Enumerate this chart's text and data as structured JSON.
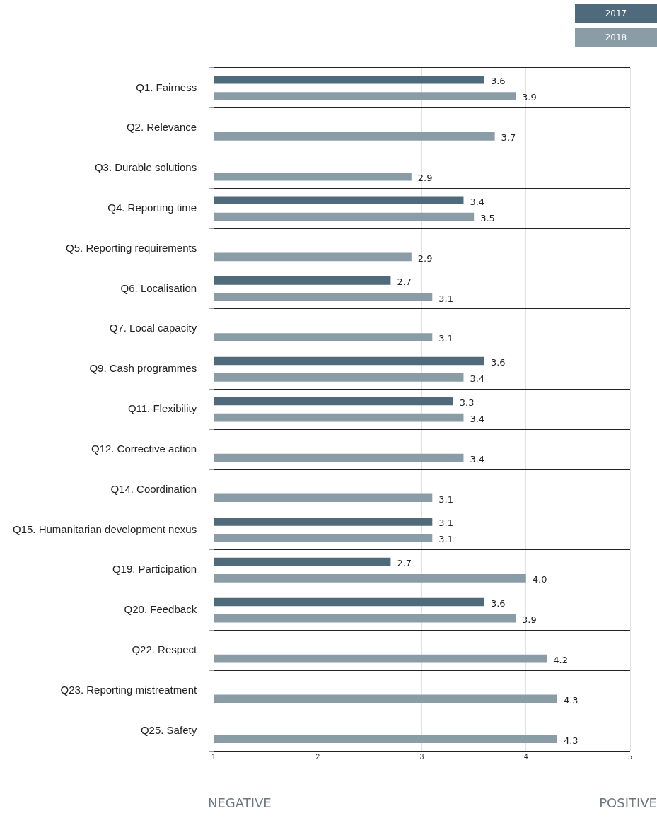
{
  "chart_data": {
    "type": "bar",
    "orientation": "horizontal",
    "categories": [
      "Q1. Fairness",
      "Q2. Relevance",
      "Q3. Durable solutions",
      "Q4. Reporting time",
      "Q5. Reporting requirements",
      "Q6. Localisation",
      "Q7. Local capacity",
      "Q9. Cash programmes",
      "Q11. Flexibility",
      "Q12. Corrective action",
      "Q14. Coordination",
      "Q15. Humanitarian development nexus",
      "Q19. Participation",
      "Q20. Feedback",
      "Q22. Respect",
      "Q23. Reporting mistreatment",
      "Q25. Safety"
    ],
    "series": [
      {
        "name": "2017",
        "color": "#4f6a7a",
        "values": [
          3.6,
          null,
          null,
          3.4,
          null,
          2.7,
          null,
          3.6,
          3.3,
          null,
          null,
          3.1,
          2.7,
          3.6,
          null,
          null,
          null
        ],
        "value_labels": [
          "3.6",
          null,
          null,
          "3.4",
          null,
          "2.7",
          null,
          "3.6",
          "3.3",
          null,
          null,
          "3.1",
          "2.7",
          "3.6",
          null,
          null,
          null
        ]
      },
      {
        "name": "2018",
        "color": "#8a9ca6",
        "values": [
          3.9,
          3.7,
          2.9,
          3.5,
          2.9,
          3.1,
          3.1,
          3.4,
          3.4,
          3.4,
          3.1,
          3.1,
          4.0,
          3.9,
          4.2,
          4.3,
          4.3
        ],
        "value_labels": [
          "3.9",
          "3.7",
          "2.9",
          "3.5",
          "2.9",
          "3.1",
          "3.1",
          "3.4",
          "3.4",
          "3.4",
          "3.1",
          "3.1",
          "4.0",
          "3.9",
          "4.2",
          "4.3",
          "4.3"
        ]
      }
    ],
    "xlim": [
      1,
      5
    ],
    "xticks": [
      1,
      2,
      3,
      4,
      5
    ],
    "grid": true,
    "legend": "top right",
    "annotations": [
      "NEGATIVE",
      "POSITIVE"
    ]
  }
}
